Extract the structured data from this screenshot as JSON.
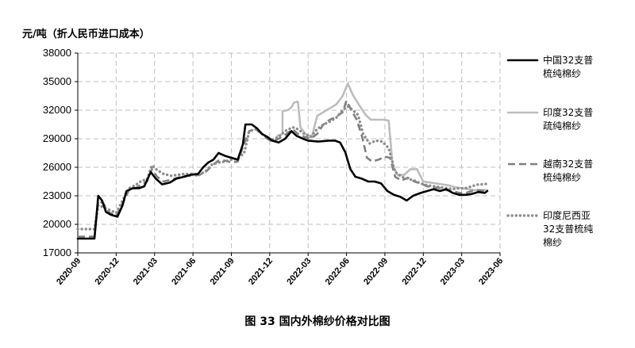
{
  "chart_data": {
    "type": "line",
    "title": "",
    "ylabel": "元/吨（折人民币进口成本）",
    "xlabel": "",
    "caption": "图 33   国内外棉纱价格对比图",
    "ylim": [
      17000,
      38000
    ],
    "yticks": [
      "17000",
      "20000",
      "23000",
      "26000",
      "29000",
      "32000",
      "35000",
      "38000"
    ],
    "xticks": [
      "2020-09",
      "2020-12",
      "2021-03",
      "2021-06",
      "2021-09",
      "2021-12",
      "2022-03",
      "2022-06",
      "2022-09",
      "2022-12",
      "2023-03",
      "2023-06"
    ],
    "xlim": [
      0,
      33
    ],
    "grid": true,
    "legend_position": "right",
    "series": [
      {
        "name": "中国32支普梳纯棉纱",
        "legend_lines": [
          "中国32支普",
          "梳纯棉纱"
        ],
        "style": "solid",
        "color": "#000000",
        "points": [
          [
            0,
            18500
          ],
          [
            0.4,
            18500
          ],
          [
            1.3,
            18500
          ],
          [
            1.6,
            23000
          ],
          [
            1.9,
            22500
          ],
          [
            2.2,
            21300
          ],
          [
            2.6,
            21000
          ],
          [
            3.1,
            20800
          ],
          [
            3.5,
            22000
          ],
          [
            3.8,
            23500
          ],
          [
            4.3,
            23800
          ],
          [
            4.8,
            23800
          ],
          [
            5.2,
            24000
          ],
          [
            5.7,
            25500
          ],
          [
            6.1,
            24800
          ],
          [
            6.6,
            24200
          ],
          [
            7.2,
            24400
          ],
          [
            7.7,
            24800
          ],
          [
            8.3,
            25000
          ],
          [
            8.8,
            25200
          ],
          [
            9.4,
            25300
          ],
          [
            9.8,
            26000
          ],
          [
            10.2,
            26500
          ],
          [
            10.6,
            26800
          ],
          [
            11.0,
            27500
          ],
          [
            11.5,
            27200
          ],
          [
            12.0,
            27000
          ],
          [
            12.5,
            26800
          ],
          [
            12.9,
            28400
          ],
          [
            13.1,
            30500
          ],
          [
            13.6,
            30500
          ],
          [
            14.0,
            30100
          ],
          [
            14.4,
            29500
          ],
          [
            14.8,
            29200
          ],
          [
            15.2,
            28800
          ],
          [
            15.7,
            28600
          ],
          [
            16.2,
            29000
          ],
          [
            16.7,
            29800
          ],
          [
            17.1,
            29300
          ],
          [
            17.6,
            29000
          ],
          [
            18.0,
            28800
          ],
          [
            18.8,
            28700
          ],
          [
            19.6,
            28800
          ],
          [
            20.1,
            28800
          ],
          [
            20.5,
            28600
          ],
          [
            20.9,
            27600
          ],
          [
            21.3,
            25800
          ],
          [
            21.7,
            25000
          ],
          [
            22.2,
            24800
          ],
          [
            22.7,
            24500
          ],
          [
            23.2,
            24500
          ],
          [
            23.7,
            24300
          ],
          [
            24.2,
            23500
          ],
          [
            24.7,
            23100
          ],
          [
            25.2,
            22900
          ],
          [
            25.7,
            22500
          ],
          [
            26.2,
            23000
          ],
          [
            26.8,
            23300
          ],
          [
            27.3,
            23500
          ],
          [
            27.8,
            23700
          ],
          [
            28.3,
            23500
          ],
          [
            28.8,
            23700
          ],
          [
            29.3,
            23300
          ],
          [
            29.8,
            23100
          ],
          [
            30.3,
            23100
          ],
          [
            30.8,
            23200
          ],
          [
            31.3,
            23400
          ],
          [
            31.8,
            23300
          ],
          [
            32.0,
            23500
          ]
        ]
      },
      {
        "name": "印度32支普疏纯棉纱",
        "legend_lines": [
          "印度32支普",
          "疏纯棉纱"
        ],
        "style": "solid",
        "color": "#bdbdbd",
        "points": [
          [
            15.6,
            29300
          ],
          [
            16.0,
            29500
          ],
          [
            16.0,
            31900
          ],
          [
            16.4,
            32000
          ],
          [
            16.7,
            32300
          ],
          [
            16.9,
            32800
          ],
          [
            17.2,
            32900
          ],
          [
            17.4,
            30200
          ],
          [
            17.8,
            29500
          ],
          [
            18.3,
            29200
          ],
          [
            18.7,
            31400
          ],
          [
            19.2,
            31800
          ],
          [
            19.7,
            32200
          ],
          [
            20.2,
            32600
          ],
          [
            20.7,
            33500
          ],
          [
            21.1,
            34800
          ],
          [
            21.5,
            33600
          ],
          [
            22.0,
            32500
          ],
          [
            22.5,
            31500
          ],
          [
            22.9,
            31000
          ],
          [
            23.4,
            31000
          ],
          [
            23.9,
            31000
          ],
          [
            24.3,
            30900
          ],
          [
            24.6,
            26200
          ],
          [
            25.0,
            25200
          ],
          [
            25.5,
            25200
          ],
          [
            26.0,
            25800
          ],
          [
            26.5,
            25800
          ],
          [
            27.0,
            24500
          ],
          [
            27.5,
            24400
          ],
          [
            28.0,
            24300
          ],
          [
            28.5,
            24200
          ],
          [
            29.0,
            24100
          ],
          [
            29.5,
            23900
          ],
          [
            30.0,
            23800
          ],
          [
            30.5,
            23700
          ],
          [
            31.0,
            23600
          ],
          [
            31.5,
            23600
          ],
          [
            32.0,
            23600
          ]
        ]
      },
      {
        "name": "越南32支普梳纯棉纱",
        "legend_lines": [
          "越南32支普",
          "梳纯棉纱"
        ],
        "style": "dashed",
        "color": "#7f7f7f",
        "points": [
          [
            0,
            18700
          ],
          [
            1.3,
            18700
          ],
          [
            1.6,
            22500
          ],
          [
            2.0,
            22200
          ],
          [
            2.5,
            21200
          ],
          [
            3.0,
            20900
          ],
          [
            3.5,
            22200
          ],
          [
            4.0,
            23600
          ],
          [
            4.5,
            23800
          ],
          [
            5.0,
            24200
          ],
          [
            5.4,
            24500
          ],
          [
            5.8,
            25800
          ],
          [
            6.2,
            25000
          ],
          [
            6.7,
            24500
          ],
          [
            7.3,
            24700
          ],
          [
            7.8,
            24900
          ],
          [
            8.4,
            25100
          ],
          [
            9.0,
            25100
          ],
          [
            9.5,
            25200
          ],
          [
            10.0,
            25500
          ],
          [
            10.5,
            26200
          ],
          [
            11.0,
            26700
          ],
          [
            11.5,
            26700
          ],
          [
            12.0,
            26500
          ],
          [
            12.5,
            26600
          ],
          [
            13.0,
            28500
          ],
          [
            13.4,
            29800
          ],
          [
            13.9,
            30000
          ],
          [
            14.3,
            29600
          ],
          [
            14.8,
            29000
          ],
          [
            15.2,
            28700
          ],
          [
            15.7,
            29000
          ],
          [
            16.2,
            29400
          ],
          [
            16.8,
            30000
          ],
          [
            17.2,
            29500
          ],
          [
            17.7,
            29200
          ],
          [
            18.2,
            29000
          ],
          [
            18.7,
            29500
          ],
          [
            19.2,
            30500
          ],
          [
            19.7,
            31000
          ],
          [
            20.2,
            31300
          ],
          [
            20.7,
            31800
          ],
          [
            21.0,
            33000
          ],
          [
            21.3,
            32200
          ],
          [
            21.8,
            31000
          ],
          [
            22.2,
            29300
          ],
          [
            22.6,
            27000
          ],
          [
            23.0,
            26600
          ],
          [
            23.5,
            26800
          ],
          [
            24.0,
            27100
          ],
          [
            24.4,
            27000
          ],
          [
            24.8,
            25000
          ],
          [
            25.3,
            24600
          ],
          [
            25.8,
            24900
          ],
          [
            26.3,
            24500
          ],
          [
            26.8,
            24300
          ],
          [
            27.3,
            24000
          ],
          [
            27.8,
            23900
          ],
          [
            28.3,
            23800
          ],
          [
            28.8,
            23600
          ],
          [
            29.3,
            23500
          ],
          [
            29.8,
            23300
          ],
          [
            30.3,
            23300
          ],
          [
            30.8,
            23500
          ],
          [
            31.3,
            23600
          ],
          [
            31.8,
            23500
          ],
          [
            32.0,
            23600
          ]
        ]
      },
      {
        "name": "印度尼西亚32支普梳纯棉纱",
        "legend_lines": [
          "印度尼西亚",
          "32支普梳纯",
          "棉纱"
        ],
        "style": "dotted",
        "color": "#8c8c8c",
        "points": [
          [
            0,
            19500
          ],
          [
            1.3,
            19500
          ],
          [
            1.6,
            22000
          ],
          [
            2.0,
            21800
          ],
          [
            2.5,
            21500
          ],
          [
            3.0,
            21200
          ],
          [
            3.5,
            22500
          ],
          [
            4.0,
            23800
          ],
          [
            4.5,
            24100
          ],
          [
            5.0,
            24600
          ],
          [
            5.4,
            24700
          ],
          [
            5.8,
            26200
          ],
          [
            6.2,
            25700
          ],
          [
            6.7,
            25300
          ],
          [
            7.3,
            25100
          ],
          [
            7.8,
            25200
          ],
          [
            8.4,
            25300
          ],
          [
            9.0,
            25300
          ],
          [
            9.5,
            25200
          ],
          [
            10.0,
            25600
          ],
          [
            10.5,
            26300
          ],
          [
            11.0,
            26500
          ],
          [
            11.5,
            26600
          ],
          [
            12.0,
            26800
          ],
          [
            12.5,
            26900
          ],
          [
            13.0,
            27500
          ],
          [
            13.4,
            29800
          ],
          [
            13.9,
            30000
          ],
          [
            14.3,
            29600
          ],
          [
            14.8,
            29100
          ],
          [
            15.2,
            28900
          ],
          [
            15.7,
            29200
          ],
          [
            16.2,
            29800
          ],
          [
            16.8,
            30200
          ],
          [
            17.2,
            30000
          ],
          [
            17.7,
            29500
          ],
          [
            18.2,
            29200
          ],
          [
            18.7,
            30000
          ],
          [
            19.2,
            30500
          ],
          [
            19.7,
            30800
          ],
          [
            20.2,
            31200
          ],
          [
            20.7,
            32000
          ],
          [
            21.1,
            32400
          ],
          [
            21.5,
            32000
          ],
          [
            21.9,
            31500
          ],
          [
            22.3,
            29500
          ],
          [
            22.8,
            28500
          ],
          [
            23.3,
            28800
          ],
          [
            23.8,
            28700
          ],
          [
            24.3,
            28000
          ],
          [
            24.8,
            25500
          ],
          [
            25.3,
            25000
          ],
          [
            25.8,
            24800
          ],
          [
            26.3,
            24600
          ],
          [
            26.8,
            24300
          ],
          [
            27.3,
            24100
          ],
          [
            27.8,
            24000
          ],
          [
            28.3,
            23900
          ],
          [
            28.8,
            23800
          ],
          [
            29.3,
            23700
          ],
          [
            29.8,
            23800
          ],
          [
            30.3,
            23800
          ],
          [
            30.8,
            24000
          ],
          [
            31.3,
            24200
          ],
          [
            31.8,
            24200
          ],
          [
            32.0,
            24300
          ]
        ]
      }
    ]
  }
}
